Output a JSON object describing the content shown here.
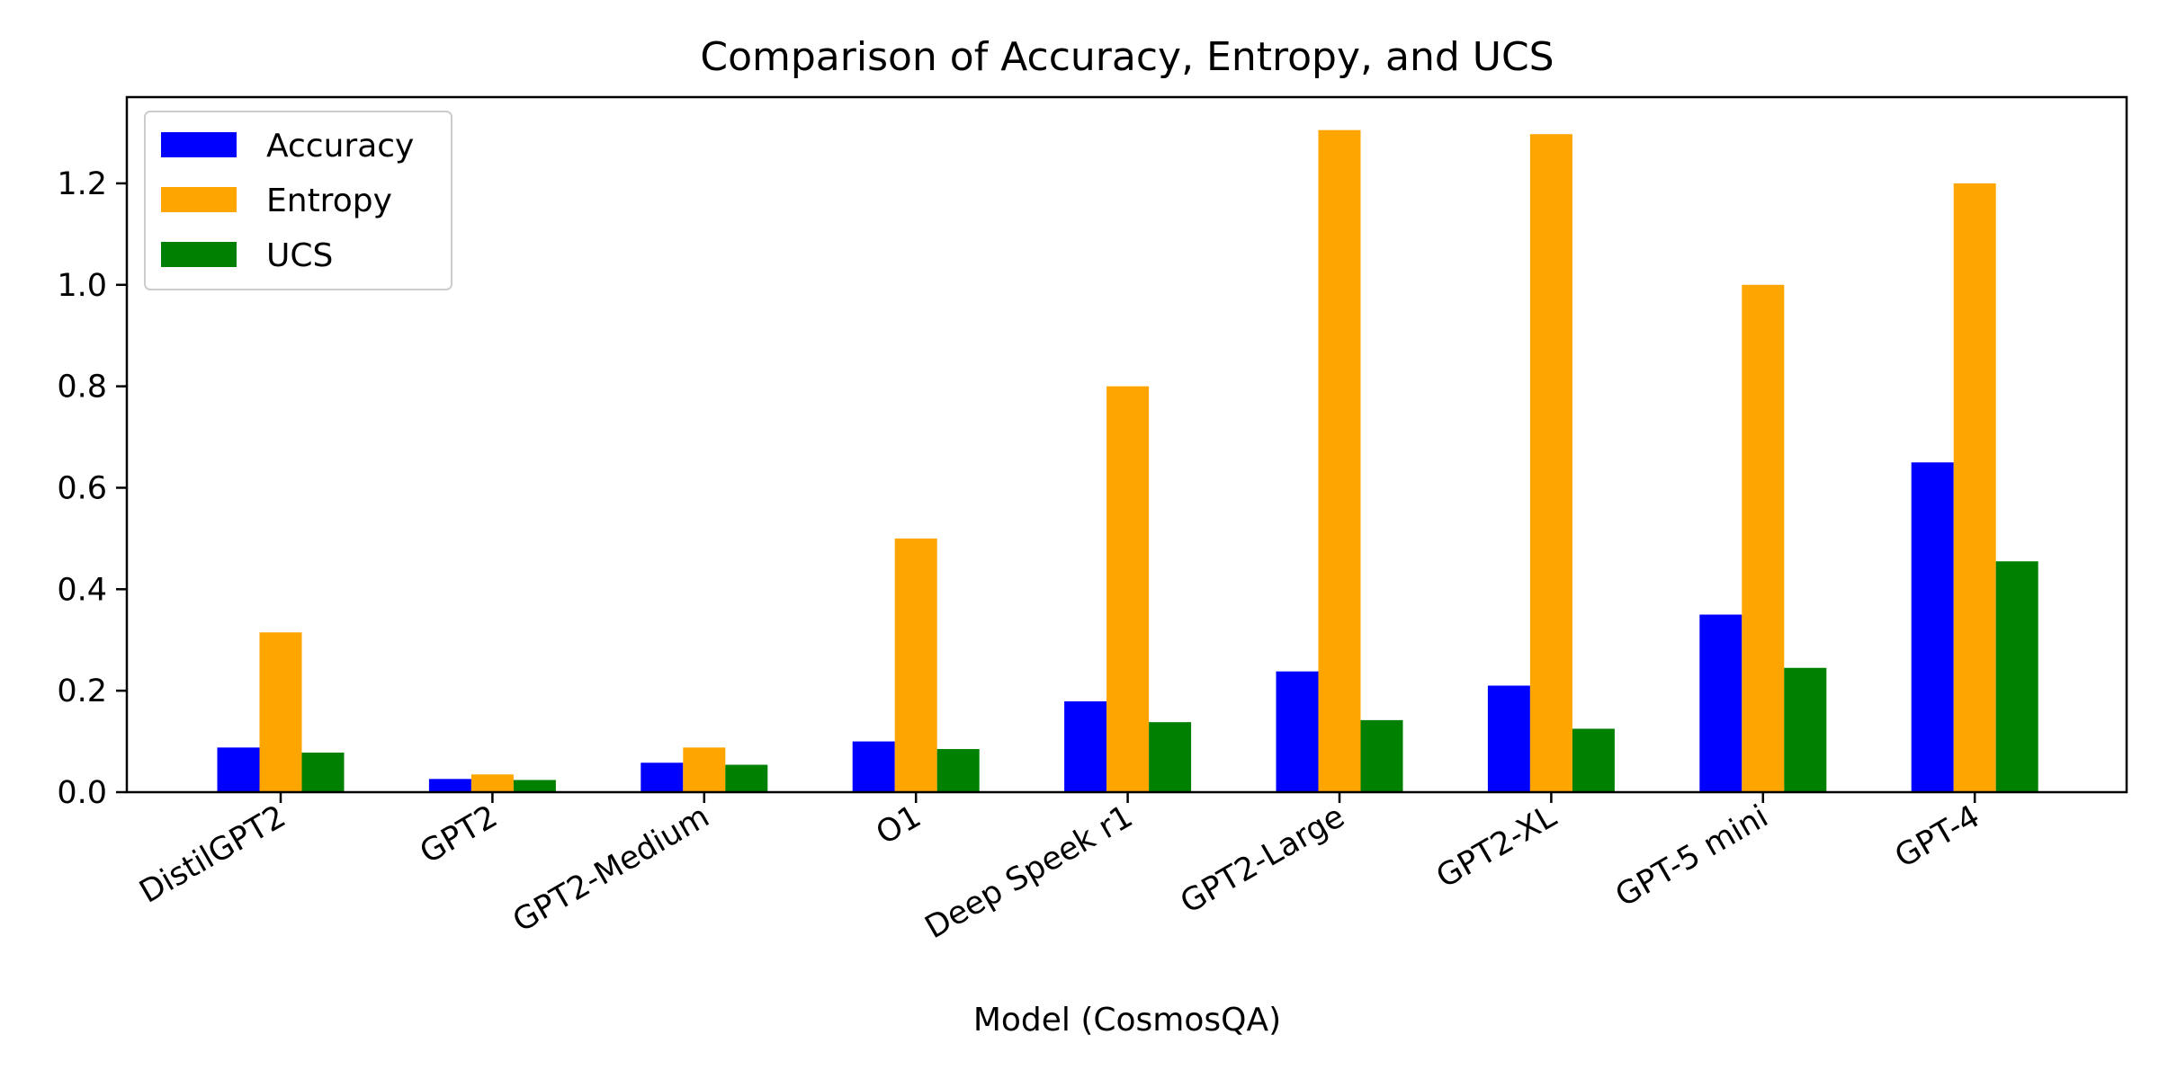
{
  "chart_data": {
    "type": "bar",
    "title": "Comparison of Accuracy, Entropy, and UCS",
    "xlabel": "Model (CosmosQA)",
    "ylabel": "",
    "categories": [
      "DistilGPT2",
      "GPT2",
      "GPT2-Medium",
      "O1",
      "Deep Speek r1",
      "GPT2-Large",
      "GPT2-XL",
      "GPT-5 mini",
      "GPT-4"
    ],
    "series": [
      {
        "name": "Accuracy",
        "color": "#0000ff",
        "values": [
          0.088,
          0.026,
          0.058,
          0.1,
          0.179,
          0.238,
          0.21,
          0.35,
          0.65
        ]
      },
      {
        "name": "Entropy",
        "color": "#ffa500",
        "values": [
          0.315,
          0.035,
          0.088,
          0.5,
          0.8,
          1.305,
          1.297,
          1.0,
          1.2
        ]
      },
      {
        "name": "UCS",
        "color": "#008000",
        "values": [
          0.078,
          0.024,
          0.054,
          0.085,
          0.138,
          0.142,
          0.125,
          0.245,
          0.455
        ]
      }
    ],
    "ylim": [
      0,
      1.37
    ],
    "yticks": [
      "0.0",
      "0.2",
      "0.4",
      "0.6",
      "0.8",
      "1.0",
      "1.2"
    ],
    "grid": false,
    "legend_position": "top-left"
  }
}
